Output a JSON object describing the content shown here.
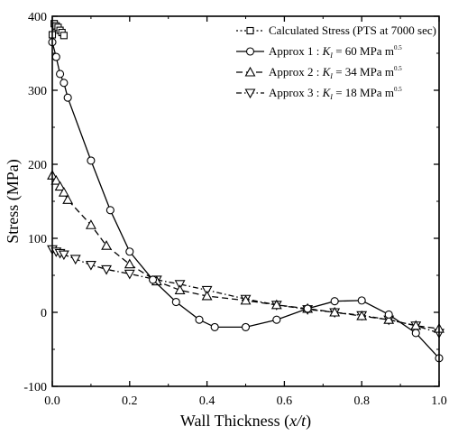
{
  "chart_data": {
    "type": "line",
    "title": "",
    "xlabel": "Wall Thickness (x/t)",
    "xlabel_prefix": "Wall Thickness (",
    "xlabel_italic": "x/t",
    "xlabel_suffix": ")",
    "ylabel": "Stress (MPa)",
    "xlim": [
      0.0,
      1.0
    ],
    "ylim": [
      -100,
      400
    ],
    "x_ticks": [
      "0.0",
      "0.2",
      "0.4",
      "0.6",
      "0.8",
      "1.0"
    ],
    "y_ticks": [
      "-100",
      "0",
      "100",
      "200",
      "300",
      "400"
    ],
    "grid": false,
    "legend_position": "top-right",
    "series": [
      {
        "name": "Calculated Stress (PTS at 7000 sec)",
        "legend_parts": {
          "pre": "Calculated Stress (PTS at 7000 sec)"
        },
        "marker": "square",
        "dash": "dotted",
        "x": [
          0.0,
          0.005,
          0.01,
          0.015,
          0.02,
          0.025,
          0.03
        ],
        "y": [
          375,
          390,
          387,
          385,
          381,
          378,
          374
        ]
      },
      {
        "name": "Approx 1 : K_I = 60 MPa m^0.5",
        "legend_parts": {
          "pre": "Approx 1 : ",
          "k": "K",
          "sub": "I",
          "mid": " = 60 MPa m",
          "sup": "0.5"
        },
        "marker": "circle",
        "dash": "solid",
        "x": [
          0.0,
          0.01,
          0.02,
          0.03,
          0.04,
          0.1,
          0.15,
          0.2,
          0.26,
          0.32,
          0.38,
          0.42,
          0.5,
          0.58,
          0.66,
          0.73,
          0.8,
          0.87,
          0.94,
          1.0
        ],
        "y": [
          365,
          345,
          322,
          310,
          290,
          205,
          138,
          82,
          44,
          14,
          -10,
          -20,
          -20,
          -10,
          5,
          15,
          16,
          -3,
          -28,
          -62
        ]
      },
      {
        "name": "Approx 2 : K_I = 34 MPa m^0.5",
        "legend_parts": {
          "pre": "Approx 2 : ",
          "k": "K",
          "sub": "I",
          "mid": " = 34 MPa m",
          "sup": "0.5"
        },
        "marker": "triangle-up",
        "dash": "dashed",
        "x": [
          0.0,
          0.01,
          0.02,
          0.03,
          0.04,
          0.1,
          0.14,
          0.2,
          0.27,
          0.33,
          0.4,
          0.5,
          0.58,
          0.66,
          0.73,
          0.8,
          0.87,
          0.94,
          1.0
        ],
        "y": [
          185,
          178,
          170,
          162,
          152,
          118,
          90,
          65,
          42,
          30,
          22,
          16,
          10,
          5,
          0,
          -5,
          -10,
          -18,
          -22
        ]
      },
      {
        "name": "Approx 3 : K_I = 18 MPa m^0.5",
        "legend_parts": {
          "pre": "Approx 3 : ",
          "k": "K",
          "sub": "I",
          "mid": " = 18 MPa m",
          "sup": "0.5"
        },
        "marker": "triangle-down",
        "dash": "dashdot",
        "x": [
          0.0,
          0.01,
          0.02,
          0.03,
          0.06,
          0.1,
          0.14,
          0.2,
          0.27,
          0.33,
          0.4,
          0.5,
          0.58,
          0.66,
          0.73,
          0.8,
          0.87,
          0.94,
          1.0
        ],
        "y": [
          85,
          82,
          80,
          78,
          72,
          64,
          58,
          52,
          44,
          38,
          30,
          18,
          10,
          4,
          0,
          -4,
          -10,
          -18,
          -28
        ]
      }
    ]
  }
}
